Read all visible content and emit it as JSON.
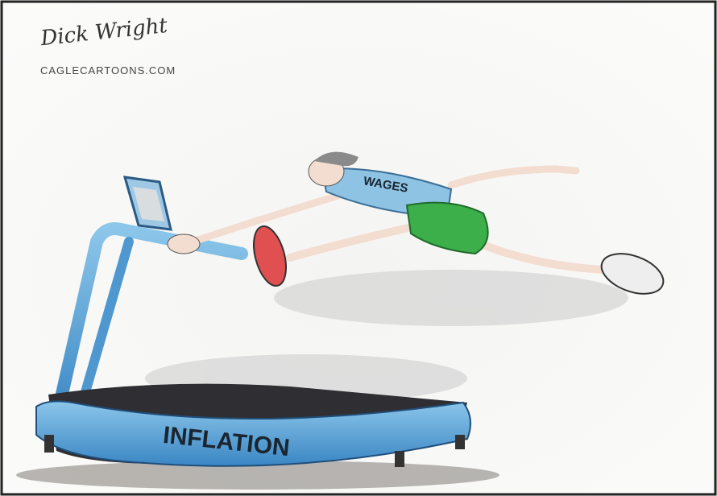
{
  "signature": "Dick Wright",
  "credit": "CAGLECARTOONS.COM",
  "labels": {
    "shirt": "WAGES",
    "treadmill": "INFLATION"
  }
}
